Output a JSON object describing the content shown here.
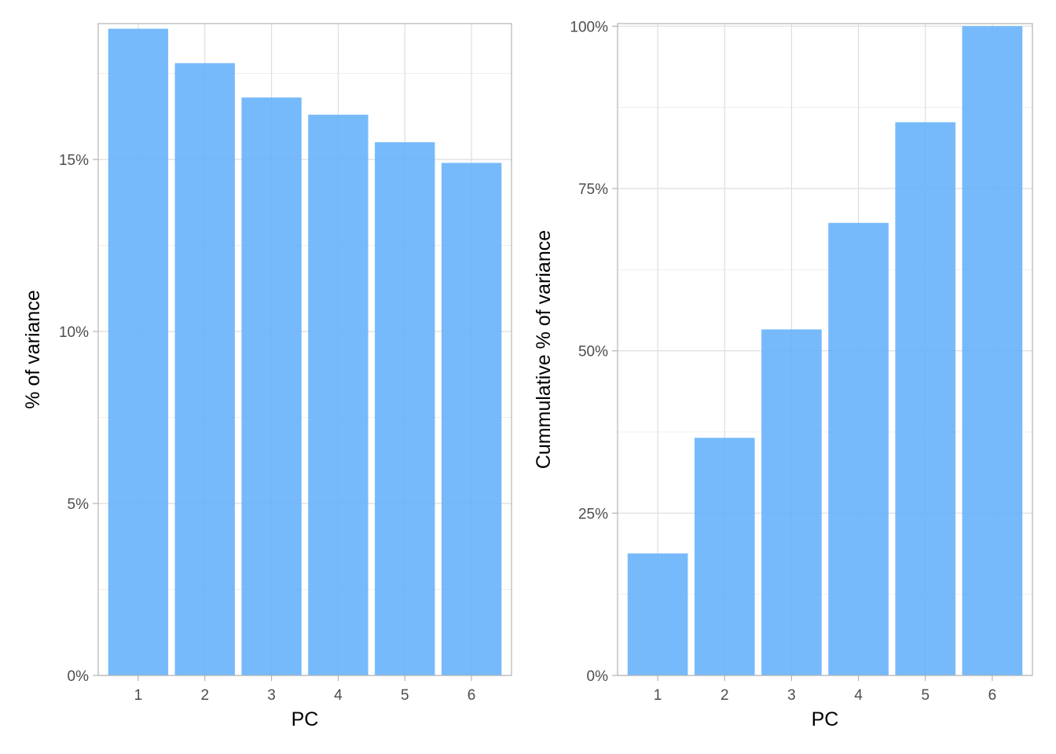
{
  "chart_data": [
    {
      "type": "bar",
      "xlabel": "PC",
      "ylabel": "% of variance",
      "categories": [
        "1",
        "2",
        "3",
        "4",
        "5",
        "6"
      ],
      "values": [
        18.8,
        17.8,
        16.8,
        16.3,
        15.5,
        14.9
      ],
      "ylim": [
        0,
        18.95
      ],
      "yticks": [
        0,
        5,
        10,
        15
      ],
      "ytick_labels": [
        "0%",
        "5%",
        "10%",
        "15%"
      ],
      "grid": true,
      "bar_color": "#63b1fb",
      "legend": "none"
    },
    {
      "type": "bar",
      "xlabel": "PC",
      "ylabel": "Cummulative % of variance",
      "categories": [
        "1",
        "2",
        "3",
        "4",
        "5",
        "6"
      ],
      "values": [
        18.8,
        36.6,
        53.3,
        69.7,
        85.2,
        100
      ],
      "ylim": [
        0,
        100.4
      ],
      "yticks": [
        0,
        25,
        50,
        75,
        100
      ],
      "ytick_labels": [
        "0%",
        "25%",
        "50%",
        "75%",
        "100%"
      ],
      "grid": true,
      "bar_color": "#63b1fb",
      "legend": "none"
    }
  ],
  "colors": {
    "panel_border": "#b3b3b3",
    "grid_major": "#dedede",
    "grid_minor": "#efefef",
    "tick_text": "#4d4d4d"
  }
}
